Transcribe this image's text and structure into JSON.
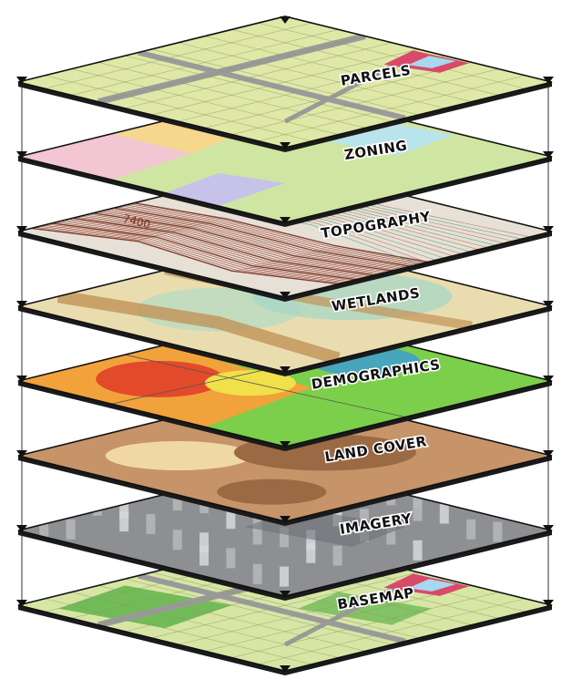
{
  "layers": [
    {
      "id": "parcels",
      "label": "PARCELS",
      "colors": {
        "base": "#dfe8a6",
        "road": "#9b9b9b",
        "accent": "#d94a6a",
        "accent2": "#a7d8ee"
      }
    },
    {
      "id": "zoning",
      "label": "ZONING",
      "colors": {
        "base": "#cfe6a2",
        "a": "#f2c6d2",
        "b": "#b9e4ec",
        "c": "#f5d88e",
        "d": "#c6c2ea"
      }
    },
    {
      "id": "topography",
      "label": "TOPOGRAPHY",
      "colors": {
        "base": "#e6e0d6",
        "line": "#8a2a18",
        "accent": "#33a07a"
      },
      "contour_label": "7400"
    },
    {
      "id": "wetlands",
      "label": "WETLANDS",
      "colors": {
        "base": "#e9ddb0",
        "a": "#b9dcc2",
        "b": "#c29358",
        "c": "#a7d7c6"
      }
    },
    {
      "id": "demographics",
      "label": "DEMOGRAPHICS",
      "colors": {
        "base": "#7ccf4a",
        "a": "#f2a23a",
        "b": "#e34a2a",
        "c": "#f0e04a",
        "d": "#3a9ad8"
      }
    },
    {
      "id": "land-cover",
      "label": "LAND COVER",
      "colors": {
        "base": "#c69468",
        "a": "#f0d8a4",
        "b": "#9b6a44"
      }
    },
    {
      "id": "imagery",
      "label": "IMAGERY",
      "colors": {
        "base": "#8d8f92",
        "a": "#b6b8bb",
        "b": "#6e7276",
        "c": "#d6d8da"
      }
    },
    {
      "id": "basemap",
      "label": "BASEMAP",
      "colors": {
        "base": "#d7e6a4",
        "a": "#5fb44a",
        "b": "#a7d8ee",
        "c": "#d94a6a"
      }
    }
  ]
}
